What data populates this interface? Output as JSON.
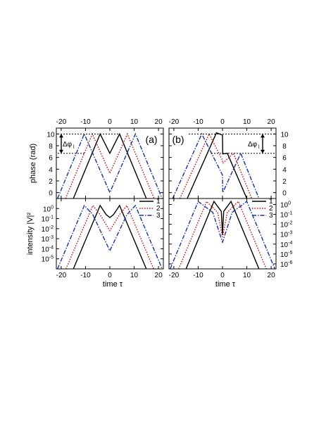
{
  "chart_data": [
    {
      "type": "line",
      "panel": "(a)",
      "ylabel": "phase (rad)",
      "xlim": [
        -22,
        22
      ],
      "ylim": [
        -1,
        11
      ],
      "xticks": [
        -20,
        -10,
        0,
        10,
        20
      ],
      "yticks": [
        0,
        2,
        4,
        6,
        8,
        10
      ],
      "top_axis_labels": true,
      "annotation": "Δφ",
      "annotation_sub": "l",
      "series": [
        {
          "name": "1",
          "color": "#000000",
          "dash": "solid",
          "points": [
            [
              -15,
              -1
            ],
            [
              -4,
              10
            ],
            [
              0,
              6.7
            ],
            [
              4,
              10
            ],
            [
              15,
              -1
            ]
          ]
        },
        {
          "name": "2",
          "color": "#e00000",
          "dash": "dot",
          "points": [
            [
              -18.2,
              -1
            ],
            [
              -7.2,
              10
            ],
            [
              0,
              3.3
            ],
            [
              7.2,
              10
            ],
            [
              18.2,
              -1
            ]
          ]
        },
        {
          "name": "3",
          "color": "#1030c0",
          "dash": "dashdot",
          "points": [
            [
              -21.5,
              -1
            ],
            [
              -10.5,
              10
            ],
            [
              0,
              0
            ],
            [
              10.5,
              10
            ],
            [
              21.5,
              -1
            ]
          ]
        }
      ]
    },
    {
      "type": "line",
      "panel": "(b)",
      "ylabel": "",
      "xlim": [
        -22,
        22
      ],
      "ylim": [
        -1,
        11
      ],
      "xticks": [
        -20,
        -10,
        0,
        10,
        20
      ],
      "yticks": [
        0,
        2,
        4,
        6,
        8,
        10
      ],
      "top_axis_labels": true,
      "right_axis_labels": true,
      "annotation": "Δφ",
      "annotation_sub": "l",
      "series": [
        {
          "name": "1",
          "color": "#000000",
          "dash": "solid",
          "points": [
            [
              -14.5,
              -1
            ],
            [
              -2.5,
              10.2
            ],
            [
              0,
              9.8
            ],
            [
              0.1,
              6.6
            ],
            [
              2,
              6.7
            ],
            [
              10,
              -1
            ]
          ]
        },
        {
          "name": "2",
          "color": "#e00000",
          "dash": "dot",
          "points": [
            [
              -17.5,
              -1
            ],
            [
              -5.5,
              10
            ],
            [
              0,
              5.5
            ],
            [
              0.1,
              5.0
            ],
            [
              4.5,
              6.7
            ],
            [
              12,
              -1
            ]
          ]
        },
        {
          "name": "3",
          "color": "#1030c0",
          "dash": "dashdot",
          "points": [
            [
              -20.5,
              -1
            ],
            [
              -8.5,
              10
            ],
            [
              0,
              3.0
            ],
            [
              0.1,
              0
            ],
            [
              7.5,
              6.7
            ],
            [
              15,
              -1
            ]
          ]
        }
      ]
    },
    {
      "type": "line",
      "panel": "(a) intensity",
      "xlabel": "time τ",
      "ylabel": "intensity |V|²",
      "yscale": "log",
      "xlim": [
        -22,
        22
      ],
      "ylim_exp": [
        -6,
        1
      ],
      "xticks": [
        -20,
        -10,
        0,
        10,
        20
      ],
      "ytick_exps": [
        -5,
        -4,
        -3,
        -2,
        -1,
        0
      ],
      "ytick_labels": [
        "10-5",
        "10-4",
        "10-3",
        "10-2",
        "10-1",
        "100"
      ],
      "series": [
        {
          "name": "1",
          "color": "#000000",
          "dash": "solid",
          "points_exp": [
            [
              -15,
              -6
            ],
            [
              -4,
              0.3
            ],
            [
              -1.5,
              -0.6
            ],
            [
              0,
              -0.9
            ],
            [
              1.5,
              -0.6
            ],
            [
              4,
              0.3
            ],
            [
              15,
              -6
            ]
          ]
        },
        {
          "name": "2",
          "color": "#e00000",
          "dash": "dot",
          "points_exp": [
            [
              -18,
              -6
            ],
            [
              -7,
              0.3
            ],
            [
              -4,
              -0.6
            ],
            [
              0,
              -2.2
            ],
            [
              4,
              -0.6
            ],
            [
              7,
              0.3
            ],
            [
              18,
              -6
            ]
          ]
        },
        {
          "name": "3",
          "color": "#1030c0",
          "dash": "dashdot",
          "points_exp": [
            [
              -21.5,
              -6
            ],
            [
              -10.5,
              0.3
            ],
            [
              -7,
              -0.6
            ],
            [
              0,
              -4.2
            ],
            [
              7,
              -0.6
            ],
            [
              10.5,
              0.3
            ],
            [
              21.5,
              -6
            ]
          ]
        }
      ]
    },
    {
      "type": "line",
      "panel": "(b) intensity",
      "xlabel": "time τ",
      "ylabel": "",
      "yscale": "log",
      "xlim": [
        -22,
        22
      ],
      "ylim_exp": [
        -6.5,
        0.6
      ],
      "xticks": [
        -20,
        -10,
        0,
        10,
        20
      ],
      "ytick_exps": [
        -6,
        -5,
        -4,
        -3,
        -2,
        -1,
        0
      ],
      "ytick_labels": [
        "10-6",
        "10-5",
        "10-4",
        "10-3",
        "10-2",
        "10-1",
        "100"
      ],
      "right_axis_labels": true,
      "legend": {
        "position": "top-right",
        "entries": [
          "1",
          "2",
          "3"
        ]
      },
      "series": [
        {
          "name": "1",
          "color": "#000000",
          "dash": "solid",
          "points_exp": [
            [
              -15,
              -6.5
            ],
            [
              -3.5,
              0.3
            ],
            [
              -0.5,
              -0.7
            ],
            [
              0,
              -3.0
            ],
            [
              0.5,
              -0.7
            ],
            [
              3.5,
              0.3
            ],
            [
              15,
              -6.5
            ]
          ]
        },
        {
          "name": "2",
          "color": "#e00000",
          "dash": "dot",
          "points_exp": [
            [
              -18,
              -6.5
            ],
            [
              -6.5,
              0.3
            ],
            [
              -2,
              -0.8
            ],
            [
              0,
              -3.3
            ],
            [
              2,
              -0.8
            ],
            [
              6.5,
              0.3
            ],
            [
              18,
              -6.5
            ]
          ]
        },
        {
          "name": "3",
          "color": "#1030c0",
          "dash": "dashdot",
          "points_exp": [
            [
              -21.5,
              -6.5
            ],
            [
              -10,
              0.3
            ],
            [
              -4,
              -0.8
            ],
            [
              0,
              -3.8
            ],
            [
              4,
              -0.8
            ],
            [
              10,
              0.3
            ],
            [
              21.5,
              -6.5
            ]
          ]
        }
      ]
    }
  ]
}
